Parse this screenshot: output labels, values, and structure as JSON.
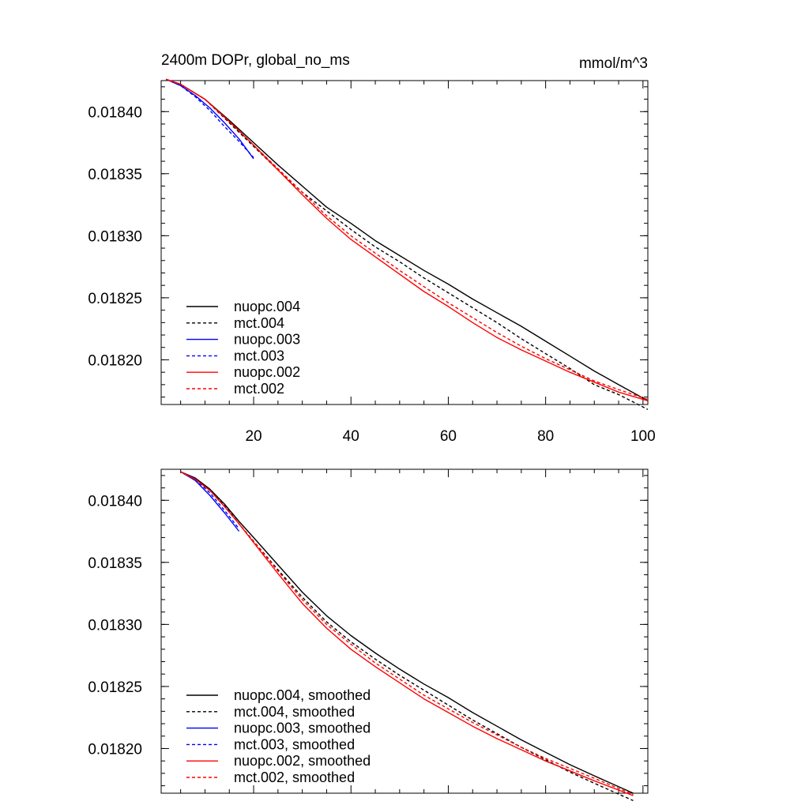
{
  "chart_data": [
    {
      "type": "line",
      "title": "2400m DOPr, global_no_ms",
      "units": "mmol/m^3",
      "xlabel": "",
      "ylabel": "",
      "xlim": [
        1,
        101
      ],
      "ylim": [
        0.018164,
        0.018425
      ],
      "xticks": [
        20,
        40,
        60,
        80,
        100
      ],
      "xtick_labels": [
        "20",
        "40",
        "60",
        "80",
        "100"
      ],
      "yticks": [
        0.0182,
        0.01825,
        0.0183,
        0.01835,
        0.0184
      ],
      "ytick_labels": [
        "0.01820",
        "0.01825",
        "0.01830",
        "0.01835",
        "0.01840"
      ],
      "legend_position": "bottom-left",
      "series": [
        {
          "name": "nuopc.004",
          "color": "#000000",
          "dash": "solid",
          "x": [
            2,
            5,
            10,
            15,
            20,
            25,
            30,
            35,
            40,
            45,
            50,
            55,
            60,
            65,
            70,
            75,
            80,
            85,
            90,
            95,
            101
          ],
          "y": [
            0.018426,
            0.018422,
            0.01841,
            0.018393,
            0.018375,
            0.018357,
            0.01834,
            0.018323,
            0.01831,
            0.018296,
            0.018284,
            0.018272,
            0.018261,
            0.018249,
            0.018238,
            0.018227,
            0.018215,
            0.018203,
            0.018191,
            0.01818,
            0.018167
          ]
        },
        {
          "name": "mct.004",
          "color": "#000000",
          "dash": "dashed",
          "x": [
            2,
            5,
            10,
            15,
            20,
            25,
            30,
            35,
            40,
            45,
            50,
            55,
            60,
            65,
            70,
            75,
            80,
            85,
            90,
            95,
            101
          ],
          "y": [
            0.018426,
            0.018422,
            0.01841,
            0.018391,
            0.018372,
            0.018353,
            0.018335,
            0.01832,
            0.018305,
            0.018291,
            0.018279,
            0.018266,
            0.018254,
            0.018242,
            0.01823,
            0.018217,
            0.018205,
            0.018193,
            0.01818,
            0.018172,
            0.01816
          ]
        },
        {
          "name": "nuopc.003",
          "color": "#0000ff",
          "dash": "solid",
          "x": [
            2,
            5,
            8,
            11,
            14,
            17,
            20
          ],
          "y": [
            0.018426,
            0.018421,
            0.018413,
            0.018403,
            0.018391,
            0.018378,
            0.018362
          ]
        },
        {
          "name": "mct.003",
          "color": "#0000ff",
          "dash": "dashed",
          "x": [
            2,
            5,
            8,
            11,
            14,
            17,
            20
          ],
          "y": [
            0.018426,
            0.018421,
            0.018412,
            0.018401,
            0.018388,
            0.018376,
            0.018363
          ]
        },
        {
          "name": "nuopc.002",
          "color": "#ff0000",
          "dash": "solid",
          "x": [
            2,
            5,
            10,
            15,
            20,
            25,
            30,
            35,
            40,
            45,
            50,
            55,
            60,
            65,
            70,
            75,
            80,
            85,
            90,
            95,
            101
          ],
          "y": [
            0.018426,
            0.018422,
            0.01841,
            0.018392,
            0.018373,
            0.018353,
            0.018333,
            0.018314,
            0.018297,
            0.018283,
            0.018269,
            0.018255,
            0.018243,
            0.01823,
            0.018218,
            0.018208,
            0.018199,
            0.01819,
            0.018182,
            0.018174,
            0.018167
          ]
        },
        {
          "name": "mct.002",
          "color": "#ff0000",
          "dash": "dashed",
          "x": [
            2,
            5,
            10,
            15,
            20,
            25,
            30,
            35,
            40,
            45,
            50,
            55,
            60,
            65,
            70,
            75,
            80,
            85,
            90,
            95,
            101
          ],
          "y": [
            0.018426,
            0.018422,
            0.01841,
            0.018392,
            0.018373,
            0.018354,
            0.018335,
            0.018316,
            0.0183,
            0.018286,
            0.018272,
            0.018259,
            0.018246,
            0.018234,
            0.018222,
            0.018211,
            0.018201,
            0.018192,
            0.018183,
            0.018176,
            0.018168
          ]
        }
      ]
    },
    {
      "type": "line",
      "title": "",
      "xlabel": "",
      "ylabel": "",
      "xlim": [
        1,
        101
      ],
      "ylim": [
        0.018164,
        0.018425
      ],
      "xticks": [
        20,
        40,
        60,
        80,
        100
      ],
      "yticks": [
        0.0182,
        0.01825,
        0.0183,
        0.01835,
        0.0184
      ],
      "ytick_labels": [
        "0.01820",
        "0.01825",
        "0.01830",
        "0.01835",
        "0.01840"
      ],
      "legend_position": "bottom-left",
      "series": [
        {
          "name": "nuopc.004, smoothed",
          "color": "#000000",
          "dash": "solid",
          "x": [
            5,
            8,
            11,
            14,
            17,
            20,
            25,
            30,
            35,
            40,
            45,
            50,
            55,
            60,
            65,
            70,
            75,
            80,
            85,
            90,
            98
          ],
          "y": [
            0.018423,
            0.018418,
            0.018409,
            0.018397,
            0.018383,
            0.01837,
            0.018348,
            0.018326,
            0.018307,
            0.018291,
            0.018277,
            0.018264,
            0.018252,
            0.018241,
            0.018229,
            0.018218,
            0.018207,
            0.018197,
            0.018187,
            0.018178,
            0.018164
          ]
        },
        {
          "name": "mct.004, smoothed",
          "color": "#000000",
          "dash": "dashed",
          "x": [
            5,
            8,
            11,
            14,
            17,
            20,
            25,
            30,
            35,
            40,
            45,
            50,
            55,
            60,
            65,
            70,
            75,
            80,
            85,
            90,
            98
          ],
          "y": [
            0.018423,
            0.018417,
            0.018408,
            0.018396,
            0.018381,
            0.018367,
            0.018344,
            0.018322,
            0.018302,
            0.018286,
            0.018272,
            0.018259,
            0.018247,
            0.018235,
            0.018223,
            0.018212,
            0.018201,
            0.018191,
            0.018181,
            0.018172,
            0.018158
          ]
        },
        {
          "name": "nuopc.003, smoothed",
          "color": "#0000ff",
          "dash": "solid",
          "x": [
            5,
            8,
            11,
            14,
            17
          ],
          "y": [
            0.018423,
            0.018416,
            0.018404,
            0.01839,
            0.018375
          ]
        },
        {
          "name": "mct.003, smoothed",
          "color": "#0000ff",
          "dash": "dashed",
          "x": [
            5,
            8,
            11,
            14,
            17
          ],
          "y": [
            0.018423,
            0.018417,
            0.018406,
            0.018392,
            0.018377
          ]
        },
        {
          "name": "nuopc.002, smoothed",
          "color": "#ff0000",
          "dash": "solid",
          "x": [
            5,
            8,
            11,
            14,
            17,
            20,
            25,
            30,
            35,
            40,
            45,
            50,
            55,
            60,
            65,
            70,
            75,
            80,
            85,
            90,
            98
          ],
          "y": [
            0.018423,
            0.018417,
            0.018408,
            0.018395,
            0.018381,
            0.018366,
            0.018341,
            0.018317,
            0.018297,
            0.01828,
            0.018266,
            0.018253,
            0.01824,
            0.018229,
            0.018218,
            0.018208,
            0.018199,
            0.01819,
            0.018182,
            0.018174,
            0.018162
          ]
        },
        {
          "name": "mct.002, smoothed",
          "color": "#ff0000",
          "dash": "dashed",
          "x": [
            5,
            8,
            11,
            14,
            17,
            20,
            25,
            30,
            35,
            40,
            45,
            50,
            55,
            60,
            65,
            70,
            75,
            80,
            85,
            90,
            98
          ],
          "y": [
            0.018423,
            0.018417,
            0.018408,
            0.018395,
            0.018381,
            0.018367,
            0.018343,
            0.01832,
            0.0183,
            0.018284,
            0.018269,
            0.018256,
            0.018243,
            0.018232,
            0.018221,
            0.018211,
            0.018201,
            0.018192,
            0.018184,
            0.018176,
            0.018163
          ]
        }
      ]
    }
  ]
}
